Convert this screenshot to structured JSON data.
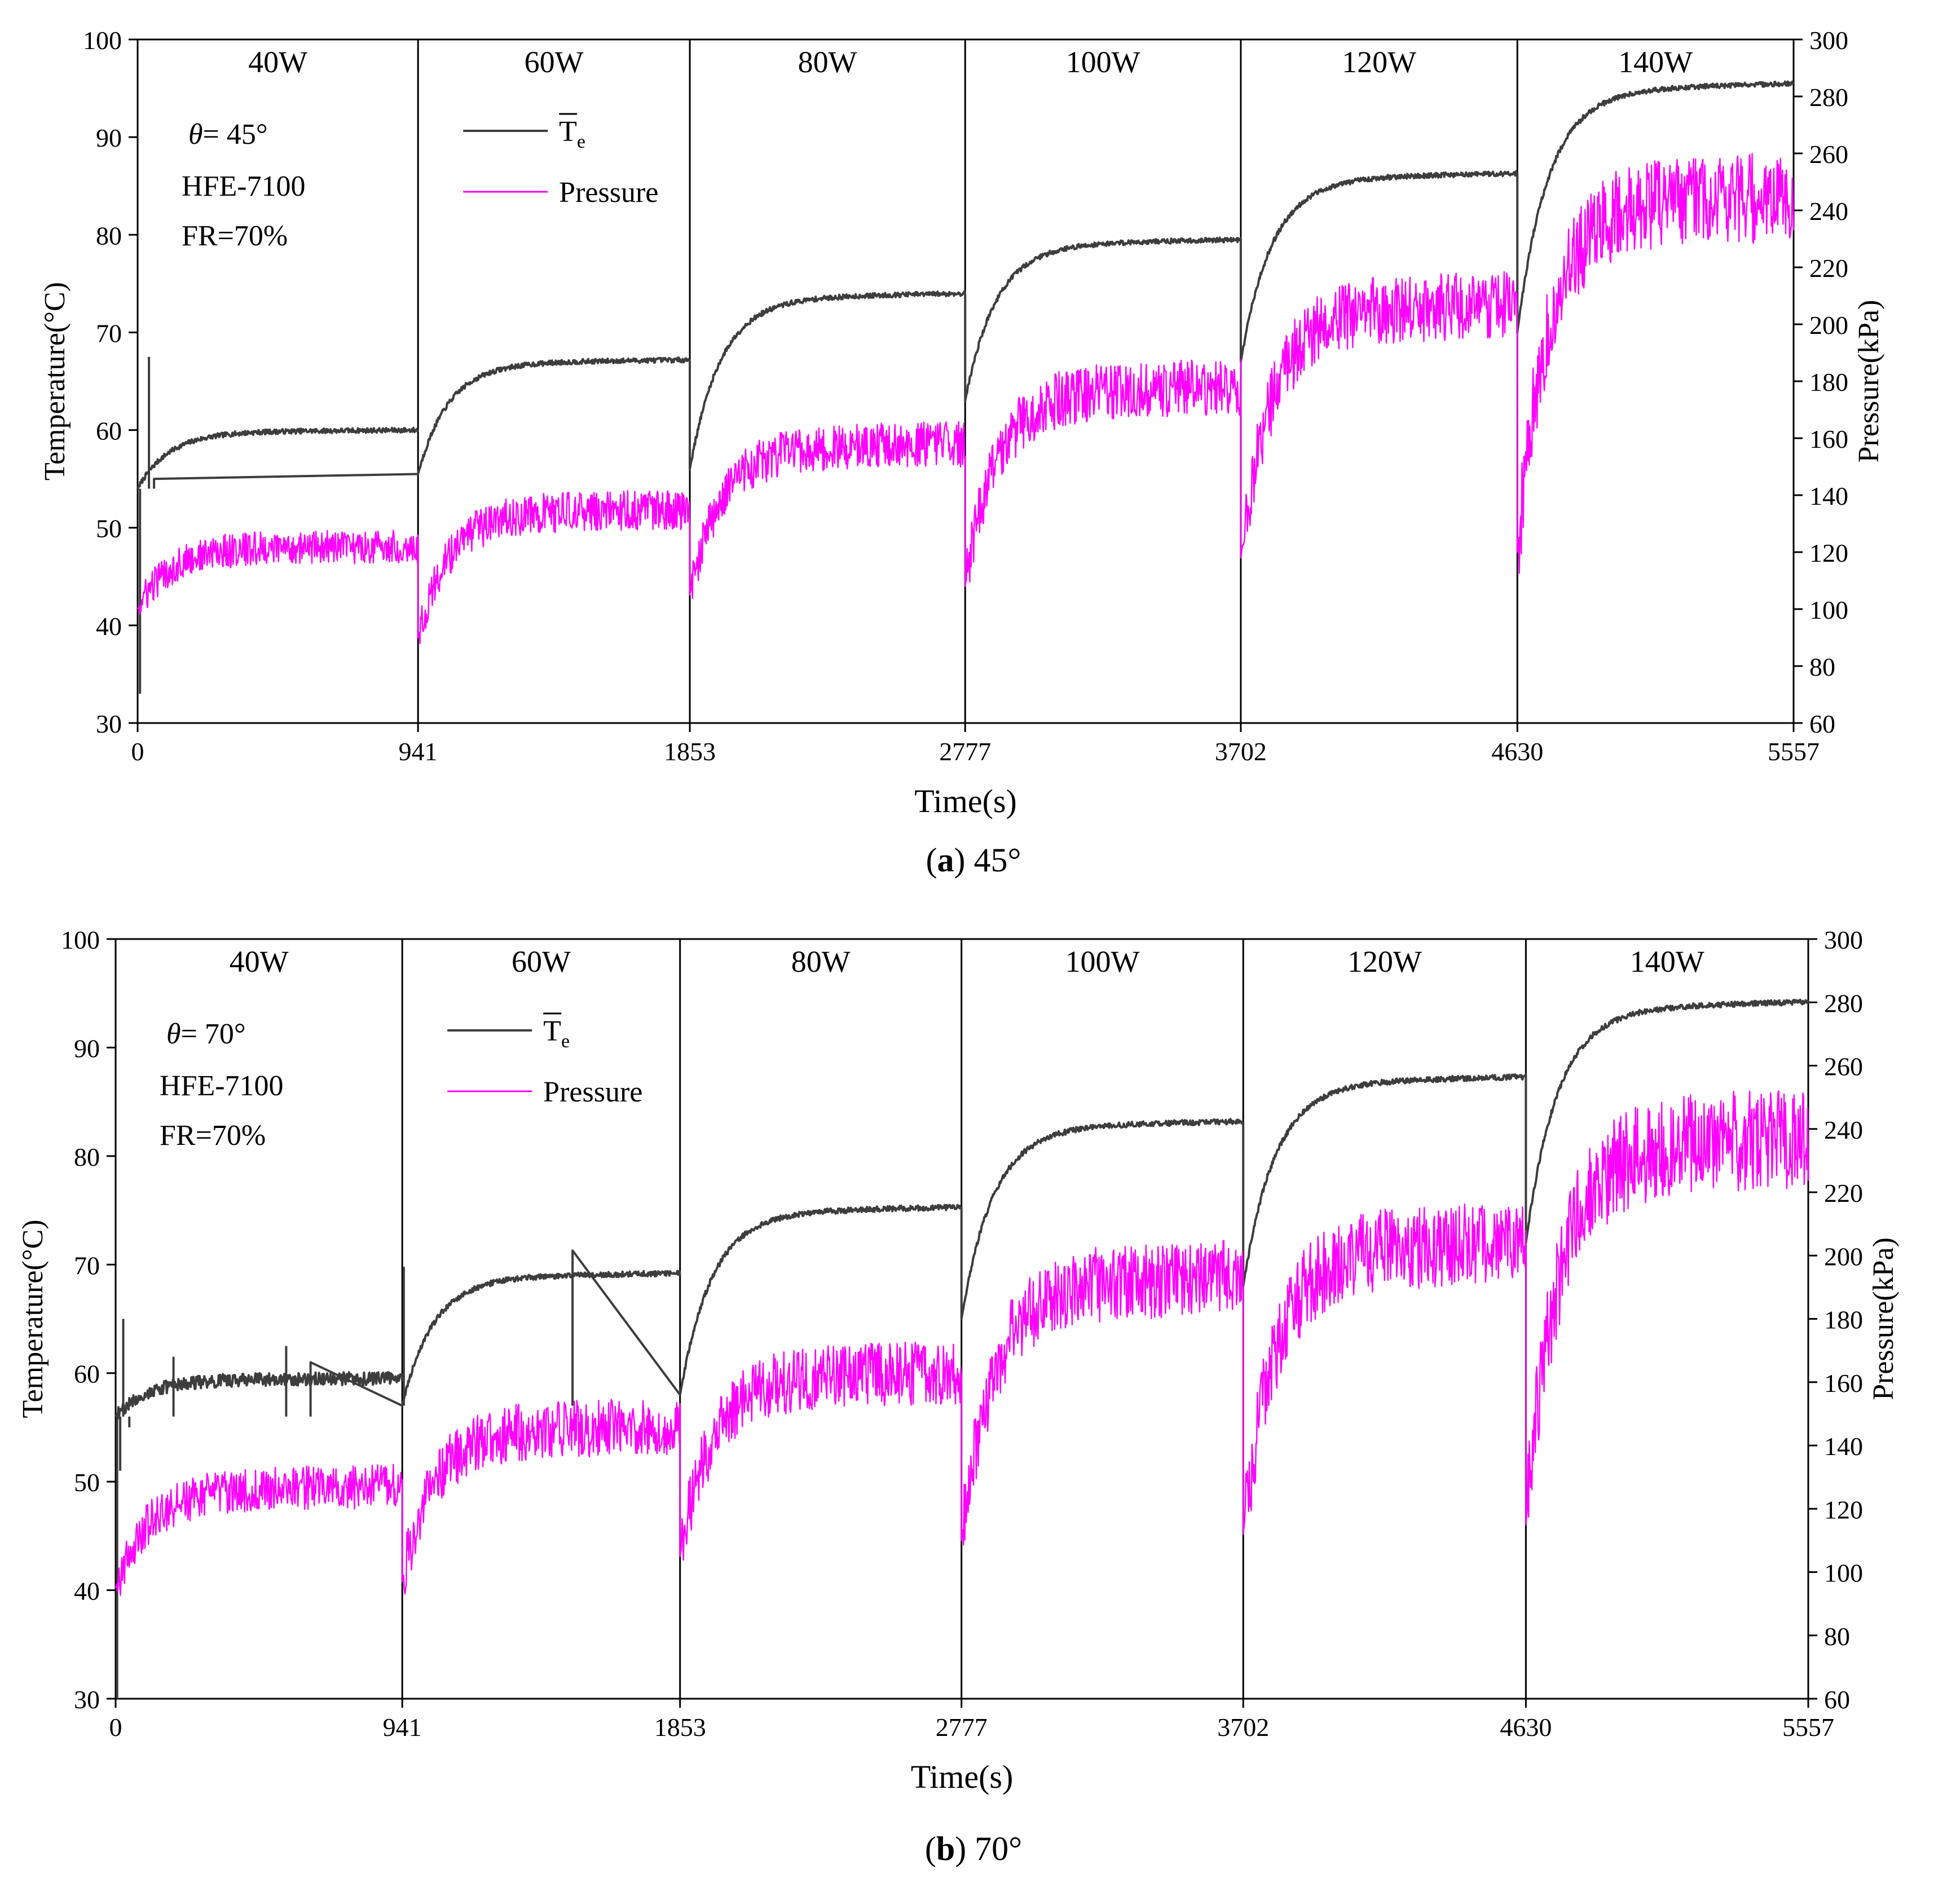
{
  "chart_data": [
    {
      "type": "line",
      "caption": {
        "label": "a",
        "text": "45°"
      },
      "annotation": {
        "theta_symbol": "θ",
        "theta_text": "= 45°",
        "fluid": "HFE-7100",
        "fill_ratio": "FR=70%"
      },
      "xlabel": "Time(s)",
      "ylabel": "Temperature(°C)",
      "y2label": "Pressure(kPa)",
      "xlim": [
        0,
        5557
      ],
      "ylim": [
        30,
        100
      ],
      "y2lim": [
        60,
        300
      ],
      "x_ticks": [
        0,
        941,
        1853,
        2777,
        3702,
        4630,
        5557
      ],
      "y_ticks": [
        30,
        40,
        50,
        60,
        70,
        80,
        90,
        100
      ],
      "y2_ticks": [
        60,
        80,
        100,
        120,
        140,
        160,
        180,
        200,
        220,
        240,
        260,
        280,
        300
      ],
      "phase_boundaries": [
        941,
        1853,
        2777,
        3702,
        4630
      ],
      "phase_labels": [
        "40W",
        "60W",
        "80W",
        "100W",
        "120W",
        "140W"
      ],
      "legend": {
        "position": "top-left",
        "entries": [
          {
            "name": "T",
            "subscript": "e",
            "overline": true,
            "color": "#3d3d3d"
          },
          {
            "name": "Pressure",
            "color": "#ff00ff"
          }
        ]
      },
      "series": [
        {
          "name": "T_e",
          "axis": "left",
          "color": "#3d3d3d",
          "segments": [
            {
              "start": 0,
              "end": 941,
              "init": 54,
              "plateau": 60.0,
              "spikes": [
                [
                  8,
                  33
                ],
                [
                  20,
                  54
                ],
                [
                  38,
                  67.5
                ],
                [
                  55,
                  55
                ]
              ]
            },
            {
              "start": 941,
              "end": 1853,
              "init": 55.5,
              "plateau": 67.2
            },
            {
              "start": 1853,
              "end": 2777,
              "init": 56,
              "plateau": 74.0
            },
            {
              "start": 2777,
              "end": 3702,
              "init": 63,
              "plateau": 79.5
            },
            {
              "start": 3702,
              "end": 4630,
              "init": 67,
              "plateau": 86.3
            },
            {
              "start": 4630,
              "end": 5557,
              "init": 70,
              "plateau": 95.5
            }
          ]
        },
        {
          "name": "Pressure",
          "axis": "right",
          "color": "#ff00ff",
          "segments": [
            {
              "start": 0,
              "end": 941,
              "init": 100,
              "plateau": 122,
              "noise": 6
            },
            {
              "start": 941,
              "end": 1853,
              "init": 90,
              "plateau": 135,
              "noise": 7
            },
            {
              "start": 1853,
              "end": 2777,
              "init": 105,
              "plateau": 158,
              "noise": 8
            },
            {
              "start": 2777,
              "end": 3702,
              "init": 108,
              "plateau": 178,
              "noise": 10
            },
            {
              "start": 3702,
              "end": 4630,
              "init": 118,
              "plateau": 207,
              "noise": 12
            },
            {
              "start": 4630,
              "end": 5557,
              "init": 120,
              "plateau": 245,
              "noise": 16
            }
          ]
        }
      ]
    },
    {
      "type": "line",
      "caption": {
        "label": "b",
        "text": "70°"
      },
      "annotation": {
        "theta_symbol": "θ",
        "theta_text": "= 70°",
        "fluid": "HFE-7100",
        "fill_ratio": "FR=70%"
      },
      "xlabel": "Time(s)",
      "ylabel": "Temperature(°C)",
      "y2label": "Pressure(kPa)",
      "xlim": [
        0,
        5557
      ],
      "ylim": [
        30,
        100
      ],
      "y2lim": [
        60,
        300
      ],
      "x_ticks": [
        0,
        941,
        1853,
        2777,
        3702,
        4630,
        5557
      ],
      "y_ticks": [
        30,
        40,
        50,
        60,
        70,
        80,
        90,
        100
      ],
      "y2_ticks": [
        60,
        80,
        100,
        120,
        140,
        160,
        180,
        200,
        220,
        240,
        260,
        280,
        300
      ],
      "phase_boundaries": [
        941,
        1853,
        2777,
        3702,
        4630
      ],
      "phase_labels": [
        "40W",
        "60W",
        "80W",
        "100W",
        "120W",
        "140W"
      ],
      "legend": {
        "position": "top-left",
        "entries": [
          {
            "name": "T",
            "subscript": "e",
            "overline": true,
            "color": "#3d3d3d"
          },
          {
            "name": "Pressure",
            "color": "#ff00ff"
          }
        ]
      },
      "series": [
        {
          "name": "T_e",
          "axis": "left",
          "color": "#3d3d3d",
          "segments": [
            {
              "start": 0,
              "end": 941,
              "init": 56,
              "plateau": 59.5,
              "noise": 0.6,
              "spikes": [
                [
                  5,
                  30
                ],
                [
                  15,
                  51
                ],
                [
                  25,
                  65
                ],
                [
                  45,
                  55
                ],
                [
                  190,
                  61.5
                ],
                [
                  560,
                  62.5
                ],
                [
                  640,
                  61
                ]
              ]
            },
            {
              "start": 941,
              "end": 1853,
              "init": 57,
              "plateau": 69.2,
              "spikes": [
                [
                  946,
                  69.8
                ],
                [
                  1500,
                  71.3
                ]
              ]
            },
            {
              "start": 1853,
              "end": 2777,
              "init": 58,
              "plateau": 75.3
            },
            {
              "start": 2777,
              "end": 3702,
              "init": 65,
              "plateau": 83.2
            },
            {
              "start": 3702,
              "end": 4630,
              "init": 68,
              "plateau": 87.3
            },
            {
              "start": 4630,
              "end": 5557,
              "init": 72,
              "plateau": 94.2
            }
          ]
        },
        {
          "name": "Pressure",
          "axis": "right",
          "color": "#ff00ff",
          "segments": [
            {
              "start": 0,
              "end": 941,
              "init": 95,
              "plateau": 127,
              "noise": 7
            },
            {
              "start": 941,
              "end": 1853,
              "init": 97,
              "plateau": 146,
              "noise": 9
            },
            {
              "start": 1853,
              "end": 2777,
              "init": 105,
              "plateau": 163,
              "noise": 10
            },
            {
              "start": 2777,
              "end": 3702,
              "init": 110,
              "plateau": 193,
              "noise": 12
            },
            {
              "start": 3702,
              "end": 4630,
              "init": 112,
              "plateau": 204,
              "noise": 13
            },
            {
              "start": 4630,
              "end": 5557,
              "init": 115,
              "plateau": 237,
              "noise": 16
            }
          ]
        }
      ]
    }
  ]
}
